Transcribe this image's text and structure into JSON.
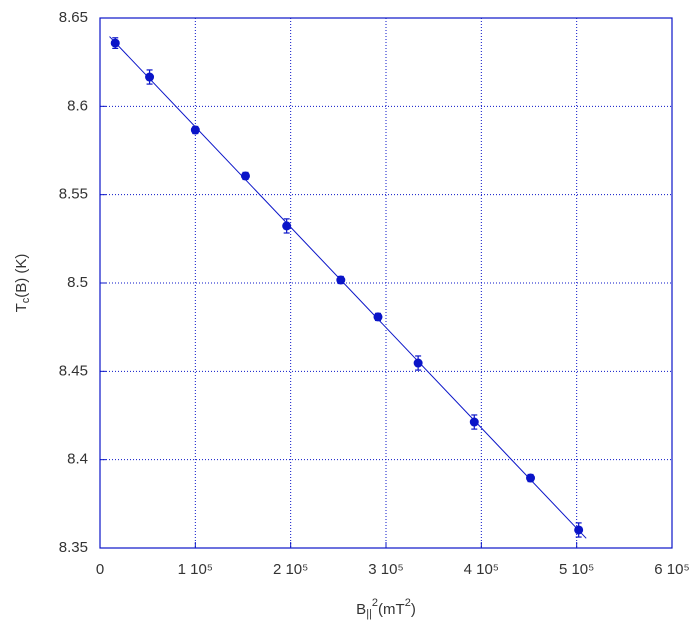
{
  "chart_data": {
    "type": "scatter",
    "color": "#0a14c8",
    "grid": true,
    "xlabel": [
      {
        "text": "B",
        "shift": "none"
      },
      {
        "text": "||",
        "shift": "sub"
      },
      {
        "text": "2",
        "shift": "super"
      },
      {
        "text": "(mT",
        "shift": "none"
      },
      {
        "text": "2",
        "shift": "super"
      },
      {
        "text": ")",
        "shift": "none"
      }
    ],
    "ylabel": [
      {
        "text": "T",
        "shift": "none"
      },
      {
        "text": "c",
        "shift": "sub"
      },
      {
        "text": "(B) (K)",
        "shift": "none"
      }
    ],
    "x": [
      16000,
      52000,
      100000,
      152600,
      195800,
      252600,
      291600,
      333700,
      392600,
      451600,
      502100
    ],
    "values": [
      8.6358,
      8.6166,
      8.5866,
      8.5606,
      8.5323,
      8.5017,
      8.4808,
      8.4547,
      8.4213,
      8.3896,
      8.3602
    ],
    "errors": [
      0.003,
      0.004,
      0.002,
      0.002,
      0.004,
      0.002,
      0.002,
      0.004,
      0.004,
      0.002,
      0.004
    ],
    "fit": {
      "x": [
        10000,
        510000
      ],
      "values": [
        8.6395,
        8.3555
      ]
    },
    "xlim": [
      0,
      600000
    ],
    "ylim": [
      8.35,
      8.65
    ],
    "xticks": [
      0,
      {
        "value": 100000,
        "label": "1 10⁵"
      },
      {
        "value": 200000,
        "label": "2 10⁵"
      },
      {
        "value": 300000,
        "label": "3 10⁵"
      },
      {
        "value": 400000,
        "label": "4 10⁵"
      },
      {
        "value": 500000,
        "label": "5 10⁵"
      },
      {
        "value": 600000,
        "label": "6 10⁵"
      }
    ],
    "yticks": [
      8.35,
      8.4,
      8.45,
      8.5,
      8.55,
      8.6,
      8.65
    ]
  }
}
